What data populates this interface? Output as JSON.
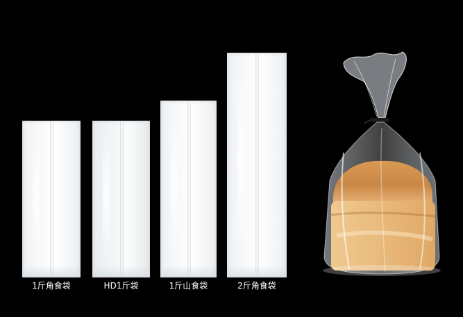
{
  "products": [
    {
      "label": "1斤角食袋"
    },
    {
      "label": "HD1斤袋"
    },
    {
      "label": "1斤山食袋"
    },
    {
      "label": "2斤角食袋"
    }
  ],
  "photo": {
    "subject": "bread-in-bag"
  }
}
